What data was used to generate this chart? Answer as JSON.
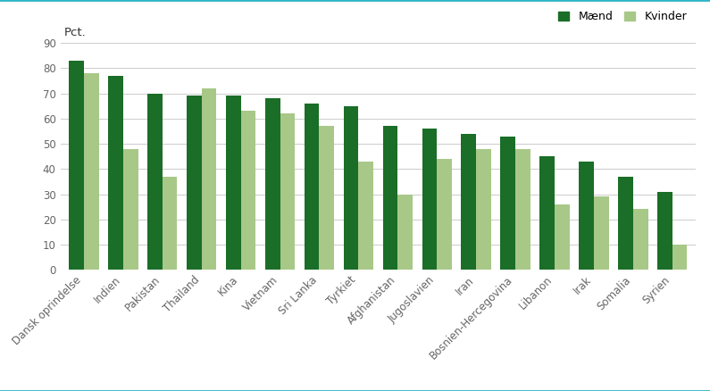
{
  "categories": [
    "Dansk oprindelse",
    "Indien",
    "Pakistan",
    "Thailand",
    "Kina",
    "Vietnam",
    "Sri Lanka",
    "Tyrkiet",
    "Afghanistan",
    "Jugoslavien",
    "Iran",
    "Bosnien-Hercegovina",
    "Libanon",
    "Irak",
    "Somalia",
    "Syrien"
  ],
  "maend": [
    83,
    77,
    70,
    69,
    69,
    68,
    66,
    65,
    57,
    56,
    54,
    53,
    45,
    43,
    37,
    31
  ],
  "kvinder": [
    78,
    48,
    37,
    72,
    63,
    62,
    57,
    43,
    30,
    44,
    48,
    48,
    26,
    29,
    24,
    10
  ],
  "maend_color": "#1a6e27",
  "kvinder_color": "#a8c888",
  "pct_label": "Pct.",
  "ylim": [
    0,
    90
  ],
  "yticks": [
    0,
    10,
    20,
    30,
    40,
    50,
    60,
    70,
    80,
    90
  ],
  "legend_maend": "Mænd",
  "legend_kvinder": "Kvinder",
  "background_color": "#ffffff",
  "grid_color": "#cccccc",
  "border_color": "#2db5c8",
  "border_linewidth": 2.0,
  "tick_fontsize": 8.5,
  "xlabel_fontsize": 8.5,
  "pct_fontsize": 9.5
}
